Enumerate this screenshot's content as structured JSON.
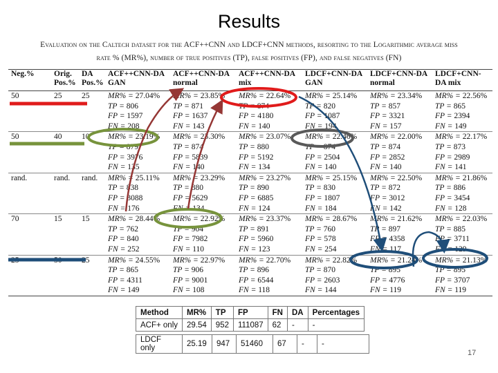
{
  "slide": {
    "title": "Results",
    "page_number": "17"
  },
  "caption": {
    "line1": "Evaluation on the Caltech dataset for the ACF++CNN and LDCF+CNN methods, resorting to the Logarithmic average miss",
    "line2": "rate % (MR%), number of true positives (TP), false positives (FP), and false negatives (FN)"
  },
  "main_table": {
    "headers": [
      "Neg.%",
      "Orig. Pos.%",
      "DA Pos.%",
      "ACF++CNN-DA GAN",
      "ACF++CNN-DA normal",
      "ACF++CNN-DA mix",
      "LDCF+CNN-DA GAN",
      "LDCF+CNN-DA normal",
      "LDCF+CNN-DA mix"
    ],
    "stat_labels": [
      "MR% = ",
      "TP = ",
      "FP = ",
      "FN = "
    ],
    "rows": [
      {
        "neg": "50",
        "orig": "25",
        "da": "25",
        "cells": [
          [
            "27.04%",
            "806",
            "1597",
            "208"
          ],
          [
            "23.85%",
            "871",
            "1637",
            "143"
          ],
          [
            "22.64%",
            "874",
            "4180",
            "140"
          ],
          [
            "25.14%",
            "820",
            "1087",
            "194"
          ],
          [
            "23.34%",
            "857",
            "3321",
            "157"
          ],
          [
            "22.56%",
            "865",
            "2394",
            "149"
          ]
        ]
      },
      {
        "neg": "50",
        "orig": "40",
        "da": "10",
        "cells": [
          [
            "23.19%",
            "879",
            "3976",
            "135"
          ],
          [
            "23.30%",
            "874",
            "5839",
            "140"
          ],
          [
            "23.07%",
            "880",
            "5192",
            "134"
          ],
          [
            "22.46%",
            "874",
            "2504",
            "140"
          ],
          [
            "22.00%",
            "874",
            "2852",
            "140"
          ],
          [
            "22.17%",
            "873",
            "2989",
            "141"
          ]
        ]
      },
      {
        "neg": "rand.",
        "orig": "rand.",
        "da": "rand.",
        "cells": [
          [
            "25.11%",
            "838",
            "3088",
            "176"
          ],
          [
            "23.29%",
            "880",
            "5629",
            "134"
          ],
          [
            "23.27%",
            "890",
            "6885",
            "124"
          ],
          [
            "25.15%",
            "830",
            "1807",
            "184"
          ],
          [
            "22.50%",
            "872",
            "3012",
            "142"
          ],
          [
            "21.86%",
            "886",
            "3454",
            "128"
          ]
        ]
      },
      {
        "neg": "70",
        "orig": "15",
        "da": "15",
        "cells": [
          [
            "28.44%",
            "762",
            "840",
            "252"
          ],
          [
            "22.92%",
            "904",
            "7982",
            "110"
          ],
          [
            "23.37%",
            "891",
            "5960",
            "123"
          ],
          [
            "28.67%",
            "760",
            "578",
            "254"
          ],
          [
            "21.62%",
            "897",
            "4358",
            "117"
          ],
          [
            "22.03%",
            "885",
            "3711",
            "129"
          ]
        ]
      },
      {
        "neg": "25",
        "orig": "50",
        "da": "25",
        "cells": [
          [
            "24.55%",
            "865",
            "4311",
            "149"
          ],
          [
            "22.97%",
            "906",
            "9001",
            "108"
          ],
          [
            "22.70%",
            "896",
            "6544",
            "118"
          ],
          [
            "22.82%",
            "870",
            "2603",
            "144"
          ],
          [
            "21.24%",
            "895",
            "4776",
            "119"
          ],
          [
            "21.13%",
            "895",
            "3707",
            "119"
          ]
        ]
      }
    ]
  },
  "comparison_table": {
    "headers": [
      "Method",
      "MR%",
      "TP",
      "FP",
      "FN",
      "DA",
      "Percentages"
    ],
    "rows": [
      [
        "ACF+ only",
        "29.54",
        "952",
        "111087",
        "62",
        "-",
        "-"
      ]
    ]
  },
  "comparison_table2": {
    "rows": [
      [
        "LDCF only",
        "25.19",
        "947",
        "51460",
        "67",
        "-",
        "-"
      ]
    ]
  },
  "annotation_colors": {
    "red": "#e01b1b",
    "green": "#77933c",
    "brown": "#953735",
    "gray": "#595959",
    "blue": "#1f4e79"
  }
}
